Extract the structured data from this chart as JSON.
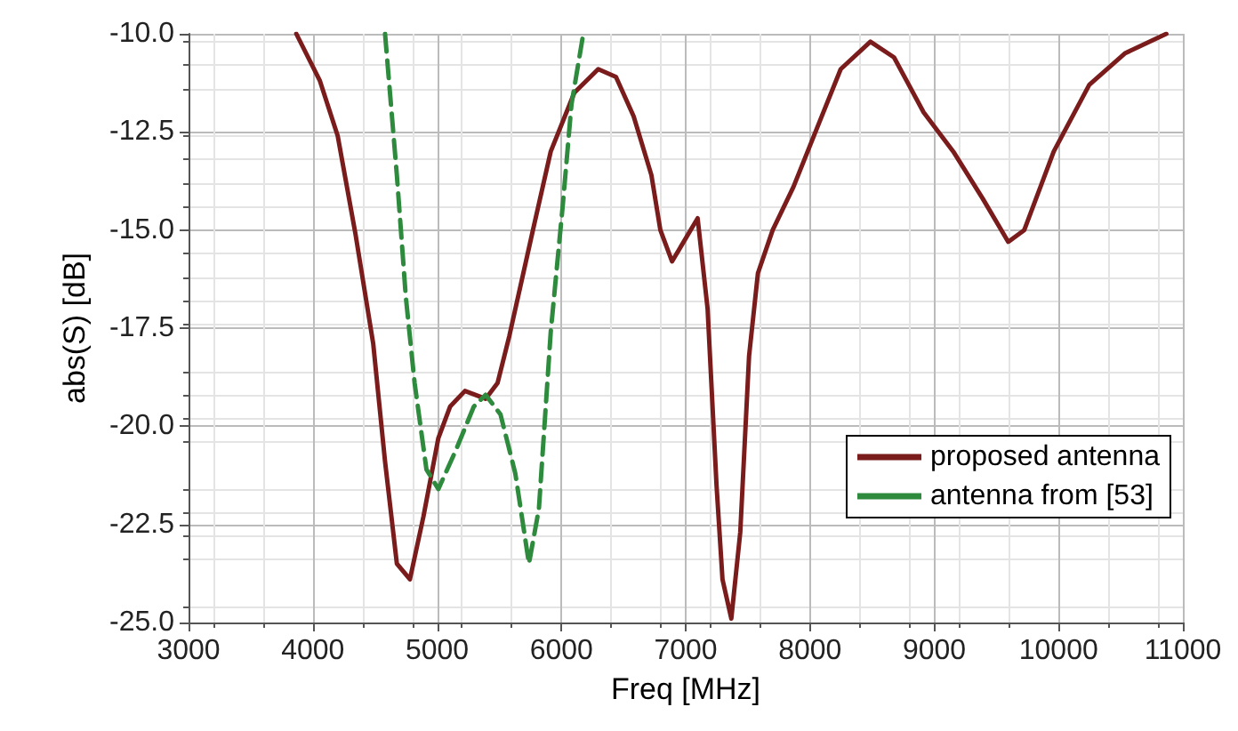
{
  "chart_data": {
    "type": "line",
    "xlabel": "Freq [MHz]",
    "ylabel": "abs(S) [dB]",
    "xlim": [
      3000,
      11000
    ],
    "xticks": [
      3000,
      4000,
      5000,
      6000,
      7000,
      8000,
      9000,
      10000,
      11000
    ],
    "ylim": [
      -25,
      -10
    ],
    "yticks": [
      {
        "value": -25,
        "label": "-25.0"
      },
      {
        "value": -22.5,
        "label": "-22.5"
      },
      {
        "value": -20,
        "label": "-20.0"
      },
      {
        "value": -17.5,
        "label": "-17.5"
      },
      {
        "value": -15,
        "label": "-15.0"
      },
      {
        "value": -12.5,
        "label": "-12.5"
      },
      {
        "value": -10,
        "label": "-10.0"
      }
    ],
    "grid": true,
    "legend": "bottom right",
    "marker": "none",
    "series": [
      {
        "name": "proposed antenna",
        "color": "#7b1c1c",
        "line_style": "solid",
        "x": [
          3867,
          4057,
          4200,
          4343,
          4486,
          4581,
          4676,
          4781,
          4890,
          5010,
          5104,
          5224,
          5390,
          5486,
          5581,
          5771,
          5914,
          6104,
          6296,
          6439,
          6581,
          6724,
          6796,
          6890,
          7096,
          7176,
          7248,
          7296,
          7367,
          7439,
          7510,
          7581,
          7700,
          7867,
          8057,
          8247,
          8486,
          8676,
          8914,
          9153,
          9390,
          9595,
          9724,
          9961,
          10247,
          10533,
          10867
        ],
        "values": [
          -10.0,
          -11.2,
          -12.6,
          -15.1,
          -17.9,
          -20.9,
          -23.5,
          -23.9,
          -22.3,
          -20.3,
          -19.5,
          -19.1,
          -19.3,
          -18.9,
          -17.7,
          -15.0,
          -13.0,
          -11.5,
          -10.9,
          -11.1,
          -12.1,
          -13.6,
          -15.0,
          -15.8,
          -14.7,
          -17.0,
          -21.5,
          -23.9,
          -24.9,
          -22.7,
          -18.2,
          -16.1,
          -15.0,
          -13.9,
          -12.4,
          -10.9,
          -10.2,
          -10.6,
          -12.0,
          -13.0,
          -14.2,
          -15.3,
          -15.0,
          -13.0,
          -11.3,
          -10.5,
          -10.0
        ]
      },
      {
        "name": "antenna from [53]",
        "color": "#2e8b3e",
        "line_style": "dashed",
        "x": [
          4581,
          4676,
          4748,
          4819,
          4914,
          5010,
          5152,
          5295,
          5390,
          5510,
          5629,
          5739,
          5819,
          5914,
          6010,
          6081,
          6176
        ],
        "values": [
          -10.0,
          -13.6,
          -16.7,
          -18.9,
          -21.1,
          -21.6,
          -20.6,
          -19.5,
          -19.2,
          -19.7,
          -21.2,
          -23.5,
          -22.1,
          -17.6,
          -14.4,
          -11.8,
          -10.0
        ]
      }
    ]
  }
}
